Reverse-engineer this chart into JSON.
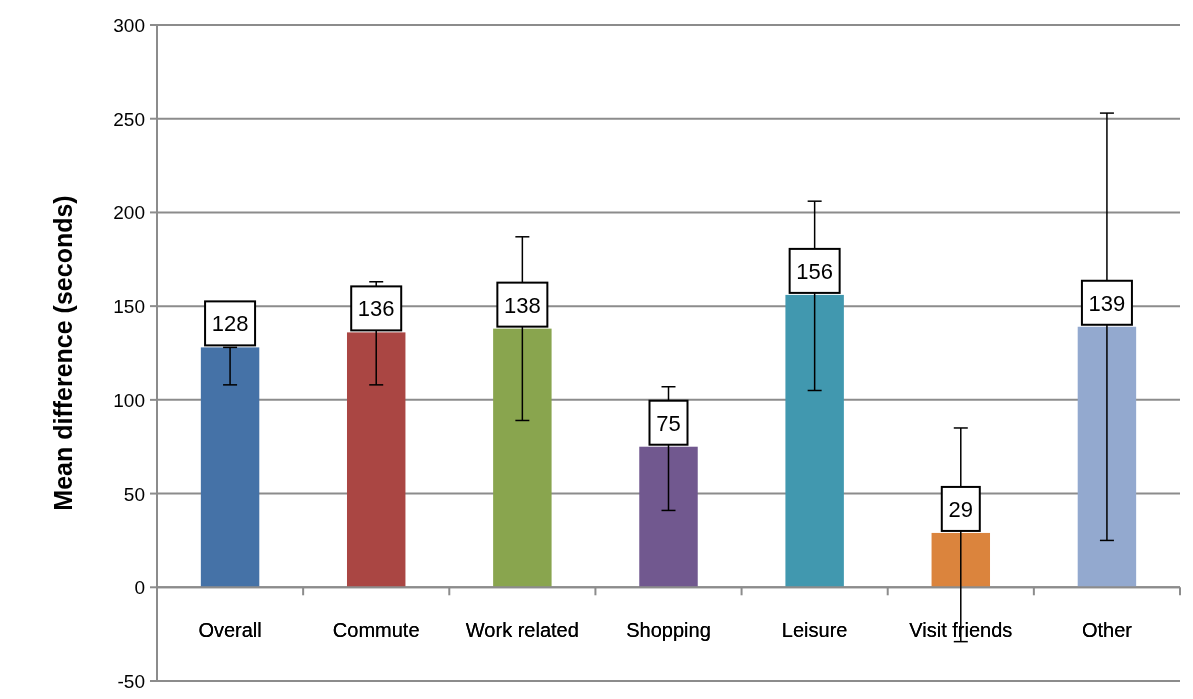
{
  "chart_data": {
    "type": "bar",
    "ylabel": "Mean difference  (seconds)",
    "categories": [
      "Overall",
      "Commute",
      "Work related",
      "Shopping",
      "Leisure",
      "Visit friends",
      "Other"
    ],
    "values": [
      128,
      136,
      138,
      75,
      156,
      29,
      139
    ],
    "colors": [
      "#4572a7",
      "#aa4643",
      "#89a54e",
      "#71588f",
      "#4198af",
      "#db843d",
      "#93a9cf"
    ],
    "errors": [
      [
        108,
        128
      ],
      [
        108,
        163
      ],
      [
        89,
        187
      ],
      [
        41,
        107
      ],
      [
        105,
        206
      ],
      [
        -29,
        85
      ],
      [
        25,
        253
      ]
    ],
    "data_labels": true,
    "ylim": [
      -50,
      300
    ],
    "yticks": [
      -50,
      0,
      50,
      100,
      150,
      200,
      250,
      300
    ],
    "grid": "y"
  }
}
